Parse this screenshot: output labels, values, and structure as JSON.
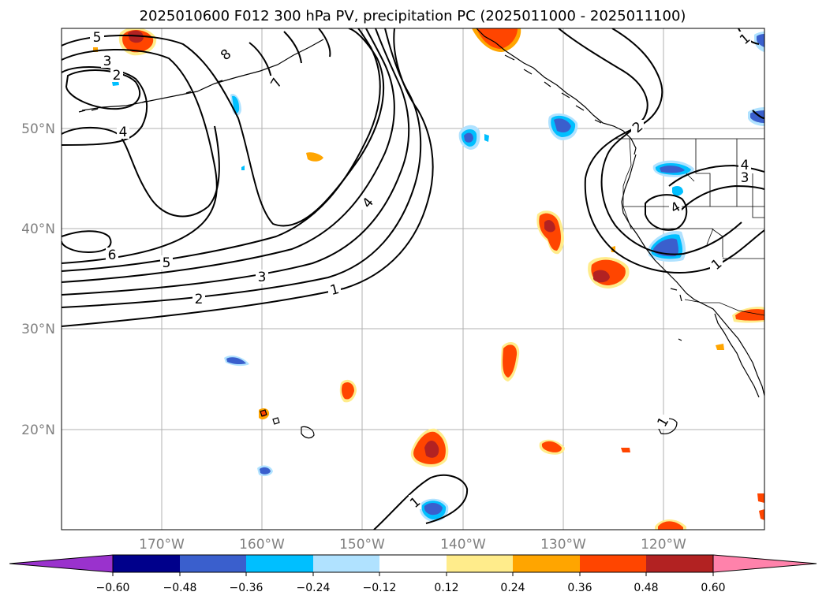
{
  "title": "2025010600 F012 300 hPa PV, precipitation PC (2025011000 - 2025011100)",
  "lat_labels": [
    "50°N",
    "40°N",
    "30°N",
    "20°N"
  ],
  "lon_labels": [
    "170°W",
    "160°W",
    "150°W",
    "140°W",
    "130°W",
    "120°W"
  ],
  "contour_labels": [
    "5",
    "3",
    "2",
    "8",
    "7",
    "4",
    "6",
    "5",
    "4",
    "3",
    "2",
    "1",
    "2",
    "4",
    "3",
    "4",
    "1",
    "1",
    "1",
    "1"
  ],
  "colorbar": {
    "ticks": [
      "−0.60",
      "−0.48",
      "−0.36",
      "−0.24",
      "−0.12",
      "0.12",
      "0.24",
      "0.36",
      "0.48",
      "0.60"
    ],
    "colors": [
      "#9a32cd",
      "#00008b",
      "#3a5fcd",
      "#00bfff",
      "#b0e2ff",
      "#ffffff",
      "#ffec8b",
      "#ffa500",
      "#ff4500",
      "#b22222",
      "#ff82ab"
    ]
  }
}
